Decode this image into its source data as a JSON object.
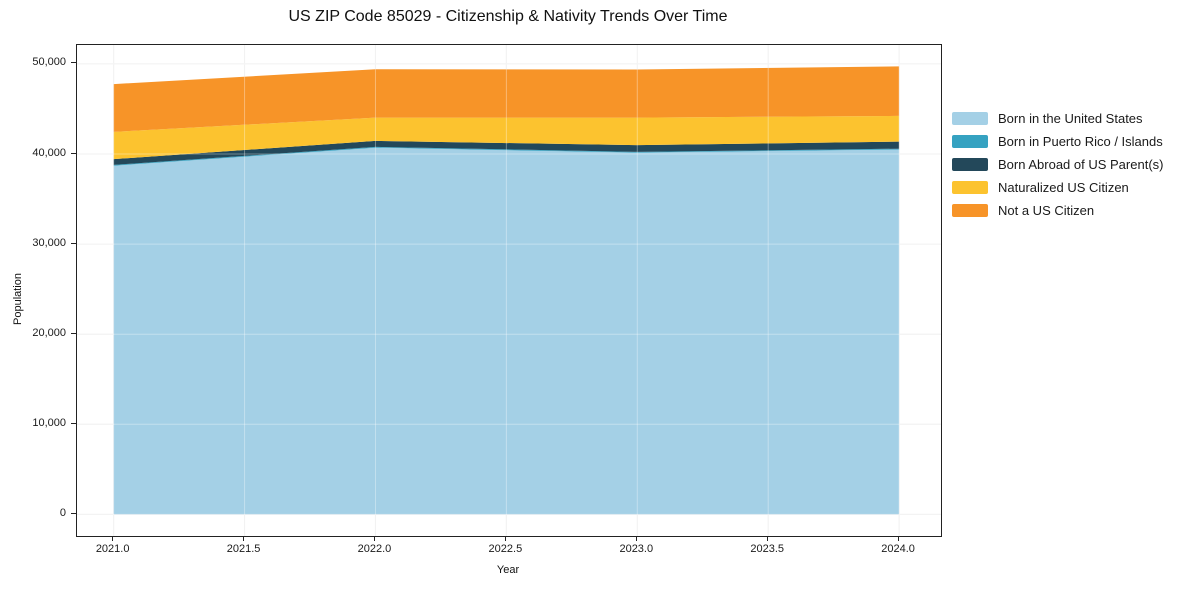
{
  "title": "US ZIP Code 85029 - Citizenship & Nativity Trends Over Time",
  "chart_data": {
    "type": "area",
    "stacked": true,
    "title": "US ZIP Code 85029 - Citizenship & Nativity Trends Over Time",
    "xlabel": "Year",
    "ylabel": "Population",
    "x": [
      2021,
      2022,
      2023,
      2024
    ],
    "series": [
      {
        "name": "Born in the United States",
        "color": "#a4d0e6",
        "values": [
          38700,
          40700,
          40150,
          40500
        ]
      },
      {
        "name": "Born in Puerto Rico / Islands",
        "color": "#35a2c1",
        "values": [
          90,
          90,
          90,
          90
        ]
      },
      {
        "name": "Born Abroad of US Parent(s)",
        "color": "#23485a",
        "values": [
          640,
          670,
          740,
          790
        ]
      },
      {
        "name": "Naturalized US Citizen",
        "color": "#fcc32f",
        "values": [
          3030,
          2580,
          3060,
          2850
        ]
      },
      {
        "name": "Not a US Citizen",
        "color": "#f79428",
        "values": [
          5300,
          5370,
          5340,
          5500
        ]
      }
    ],
    "totals": [
      47760,
      49410,
      49380,
      49730
    ],
    "xlim": [
      2020.86,
      2024.16
    ],
    "ylim": [
      -2400,
      52100
    ],
    "xticks": [
      2021.0,
      2021.5,
      2022.0,
      2022.5,
      2023.0,
      2023.5,
      2024.0
    ],
    "xtick_labels": [
      "2021.0",
      "2021.5",
      "2022.0",
      "2022.5",
      "2023.0",
      "2023.5",
      "2024.0"
    ],
    "yticks": [
      0,
      10000,
      20000,
      30000,
      40000,
      50000
    ],
    "ytick_labels": [
      "0",
      "10,000",
      "20,000",
      "30,000",
      "40,000",
      "50,000"
    ],
    "grid": true,
    "grid_color": "#ebebeb",
    "legend_position": "right-outside"
  }
}
